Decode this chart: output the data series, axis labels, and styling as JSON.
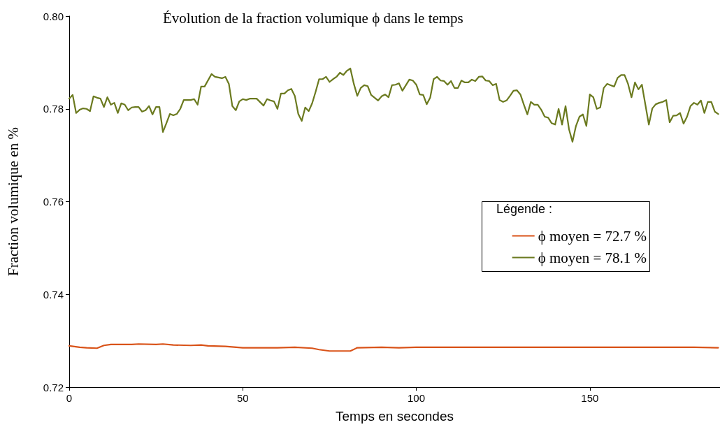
{
  "chart_data": {
    "type": "line",
    "title": "Évolution de la fraction volumique ϕ dans le temps",
    "xlabel": "Temps en secondes",
    "ylabel": "Fraction volumique en %",
    "legend_title": "Légende :",
    "xlim": [
      0,
      187.5
    ],
    "xticks": [
      0,
      50,
      100,
      150
    ],
    "ylim": [
      0.72,
      0.8
    ],
    "yticks": [
      {
        "value": 0.72,
        "label": "0.72"
      },
      {
        "value": 0.74,
        "label": "0.74"
      },
      {
        "value": 0.76,
        "label": "0.76"
      },
      {
        "value": 0.78,
        "label": "0.78"
      },
      {
        "value": 0.8,
        "label": "0.80"
      }
    ],
    "grid": false,
    "legend": "right",
    "marker": "none",
    "line_style": "solid",
    "series": [
      {
        "name": "ϕ moyen = 72.7 %",
        "color": "#d95319",
        "x": [
          0,
          3,
          5,
          8,
          10,
          12,
          15,
          18,
          20,
          25,
          27,
          30,
          35,
          38,
          40,
          45,
          50,
          55,
          60,
          65,
          70,
          72,
          75,
          80,
          81,
          83,
          90,
          95,
          100,
          110,
          120,
          130,
          140,
          150,
          160,
          170,
          180,
          187
        ],
        "values": [
          0.7289,
          0.7286,
          0.7285,
          0.7284,
          0.729,
          0.7292,
          0.7292,
          0.7292,
          0.7293,
          0.7292,
          0.7293,
          0.7291,
          0.729,
          0.7291,
          0.7289,
          0.7288,
          0.7285,
          0.7285,
          0.7285,
          0.7286,
          0.7284,
          0.7281,
          0.7278,
          0.7278,
          0.7278,
          0.7285,
          0.7286,
          0.7285,
          0.7286,
          0.7286,
          0.7286,
          0.7286,
          0.7286,
          0.7286,
          0.7286,
          0.7286,
          0.7286,
          0.7285
        ]
      },
      {
        "name": "ϕ moyen = 78.1 %",
        "color": "#6b7a1f",
        "x": [
          0,
          1,
          2,
          3,
          4,
          5,
          6,
          7,
          8,
          9,
          10,
          11,
          12,
          13,
          14,
          15,
          16,
          17,
          18,
          19,
          20,
          21,
          22,
          23,
          24,
          25,
          26,
          27,
          28,
          29,
          30,
          31,
          32,
          33,
          35,
          36,
          37,
          38,
          39,
          41,
          42,
          44,
          45,
          46,
          47,
          48,
          49,
          50,
          51,
          52,
          54,
          56,
          57,
          58,
          59,
          60,
          61,
          62,
          63,
          64,
          65,
          66,
          67,
          68,
          69,
          70,
          71,
          72,
          73,
          74,
          75,
          76,
          77,
          78,
          79,
          80,
          81,
          82,
          83,
          84,
          85,
          86,
          87,
          88,
          89,
          90,
          91,
          92,
          93,
          94,
          95,
          96,
          98,
          99,
          100,
          101,
          102,
          103,
          104,
          105,
          106,
          107,
          108,
          109,
          110,
          111,
          112,
          113,
          114,
          115,
          116,
          117,
          118,
          119,
          120,
          121,
          122,
          123,
          124,
          125,
          126,
          127,
          128,
          129,
          130,
          131,
          132,
          133,
          134,
          135,
          136,
          137,
          138,
          139,
          140,
          141,
          142,
          143,
          144,
          145,
          146,
          147,
          148,
          149,
          150,
          151,
          152,
          153,
          154,
          155,
          156,
          157,
          158,
          159,
          160,
          161,
          162,
          163,
          164,
          165,
          166,
          167,
          168,
          169,
          170,
          171,
          172,
          173,
          174,
          175,
          176,
          177,
          178,
          179,
          180,
          181,
          182,
          183,
          184,
          185,
          186,
          187
        ],
        "values": [
          0.7822,
          0.783,
          0.7791,
          0.7798,
          0.7801,
          0.78,
          0.7795,
          0.7827,
          0.7824,
          0.7822,
          0.7804,
          0.7825,
          0.7809,
          0.7813,
          0.7791,
          0.7812,
          0.7809,
          0.7797,
          0.7803,
          0.7804,
          0.7804,
          0.7794,
          0.7797,
          0.7806,
          0.7788,
          0.7804,
          0.7804,
          0.775,
          0.7769,
          0.7789,
          0.7786,
          0.7789,
          0.78,
          0.7819,
          0.7819,
          0.7821,
          0.7809,
          0.7848,
          0.7848,
          0.7875,
          0.7869,
          0.7866,
          0.7869,
          0.7854,
          0.7806,
          0.7797,
          0.7816,
          0.7821,
          0.7819,
          0.7822,
          0.7822,
          0.7807,
          0.7821,
          0.7818,
          0.7816,
          0.78,
          0.7833,
          0.7833,
          0.784,
          0.7843,
          0.7828,
          0.7789,
          0.7774,
          0.7803,
          0.7795,
          0.7812,
          0.7837,
          0.7864,
          0.7864,
          0.7869,
          0.7858,
          0.7864,
          0.7869,
          0.7878,
          0.7873,
          0.7882,
          0.7887,
          0.7854,
          0.7828,
          0.7845,
          0.7851,
          0.7849,
          0.783,
          0.7824,
          0.7818,
          0.7827,
          0.7831,
          0.7825,
          0.7851,
          0.7852,
          0.7855,
          0.7839,
          0.7863,
          0.7861,
          0.7852,
          0.7831,
          0.783,
          0.781,
          0.7824,
          0.7864,
          0.7869,
          0.7861,
          0.786,
          0.7852,
          0.786,
          0.7845,
          0.7845,
          0.7861,
          0.7857,
          0.7857,
          0.7863,
          0.786,
          0.7869,
          0.787,
          0.7861,
          0.786,
          0.7851,
          0.7854,
          0.7819,
          0.7815,
          0.7818,
          0.7828,
          0.7839,
          0.784,
          0.7831,
          0.7809,
          0.7788,
          0.7815,
          0.7809,
          0.7809,
          0.7798,
          0.7783,
          0.7781,
          0.7769,
          0.7766,
          0.78,
          0.7766,
          0.7806,
          0.7756,
          0.7729,
          0.7763,
          0.7783,
          0.7788,
          0.7763,
          0.7831,
          0.7825,
          0.78,
          0.7803,
          0.7845,
          0.7854,
          0.7851,
          0.7848,
          0.7867,
          0.7873,
          0.7873,
          0.7854,
          0.7825,
          0.7857,
          0.7842,
          0.7852,
          0.7809,
          0.7766,
          0.7801,
          0.781,
          0.7813,
          0.7815,
          0.7819,
          0.7771,
          0.7785,
          0.7786,
          0.7791,
          0.7768,
          0.7783,
          0.7806,
          0.7813,
          0.7809,
          0.7818,
          0.7791,
          0.7815,
          0.7815,
          0.7794,
          0.7789
        ]
      }
    ]
  }
}
